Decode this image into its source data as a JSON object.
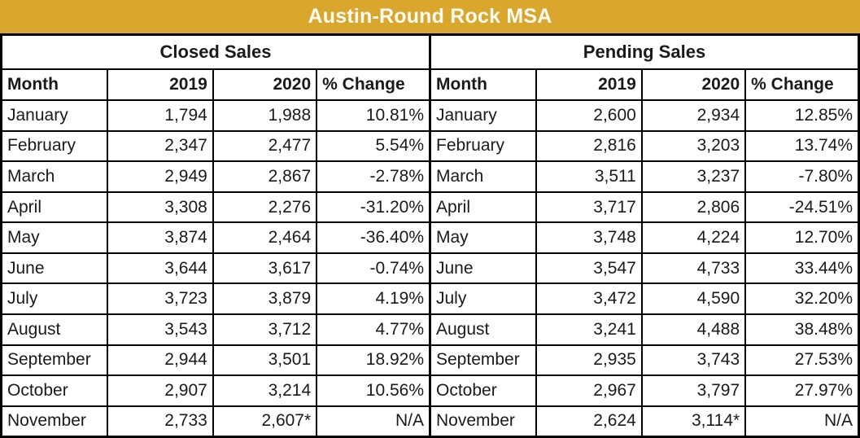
{
  "header": {
    "title": "Austin-Round Rock MSA"
  },
  "colors": {
    "title_bg": "#D9A72E",
    "title_text": "#FDFAF0",
    "border": "#000000",
    "table_bg": "#FFFFFF",
    "text": "#1A1A1A"
  },
  "chart_data": [
    {
      "type": "table",
      "title": "Closed Sales",
      "columns": [
        "Month",
        "2019",
        "2020",
        "% Change"
      ],
      "rows": [
        [
          "January",
          "1,794",
          "1,988",
          "10.81%"
        ],
        [
          "February",
          "2,347",
          "2,477",
          "5.54%"
        ],
        [
          "March",
          "2,949",
          "2,867",
          "-2.78%"
        ],
        [
          "April",
          "3,308",
          "2,276",
          "-31.20%"
        ],
        [
          "May",
          "3,874",
          "2,464",
          "-36.40%"
        ],
        [
          "June",
          "3,644",
          "3,617",
          "-0.74%"
        ],
        [
          "July",
          "3,723",
          "3,879",
          "4.19%"
        ],
        [
          "August",
          "3,543",
          "3,712",
          "4.77%"
        ],
        [
          "September",
          "2,944",
          "3,501",
          "18.92%"
        ],
        [
          "October",
          "2,907",
          "3,214",
          "10.56%"
        ],
        [
          "November",
          "2,733",
          "2,607*",
          "N/A"
        ]
      ]
    },
    {
      "type": "table",
      "title": "Pending Sales",
      "columns": [
        "Month",
        "2019",
        "2020",
        "% Change"
      ],
      "rows": [
        [
          "January",
          "2,600",
          "2,934",
          "12.85%"
        ],
        [
          "February",
          "2,816",
          "3,203",
          "13.74%"
        ],
        [
          "March",
          "3,511",
          "3,237",
          "-7.80%"
        ],
        [
          "April",
          "3,717",
          "2,806",
          "-24.51%"
        ],
        [
          "May",
          "3,748",
          "4,224",
          "12.70%"
        ],
        [
          "June",
          "3,547",
          "4,733",
          "33.44%"
        ],
        [
          "July",
          "3,472",
          "4,590",
          "32.20%"
        ],
        [
          "August",
          "3,241",
          "4,488",
          "38.48%"
        ],
        [
          "September",
          "2,935",
          "3,743",
          "27.53%"
        ],
        [
          "October",
          "2,967",
          "3,797",
          "27.97%"
        ],
        [
          "November",
          "2,624",
          "3,114*",
          "N/A"
        ]
      ]
    }
  ]
}
